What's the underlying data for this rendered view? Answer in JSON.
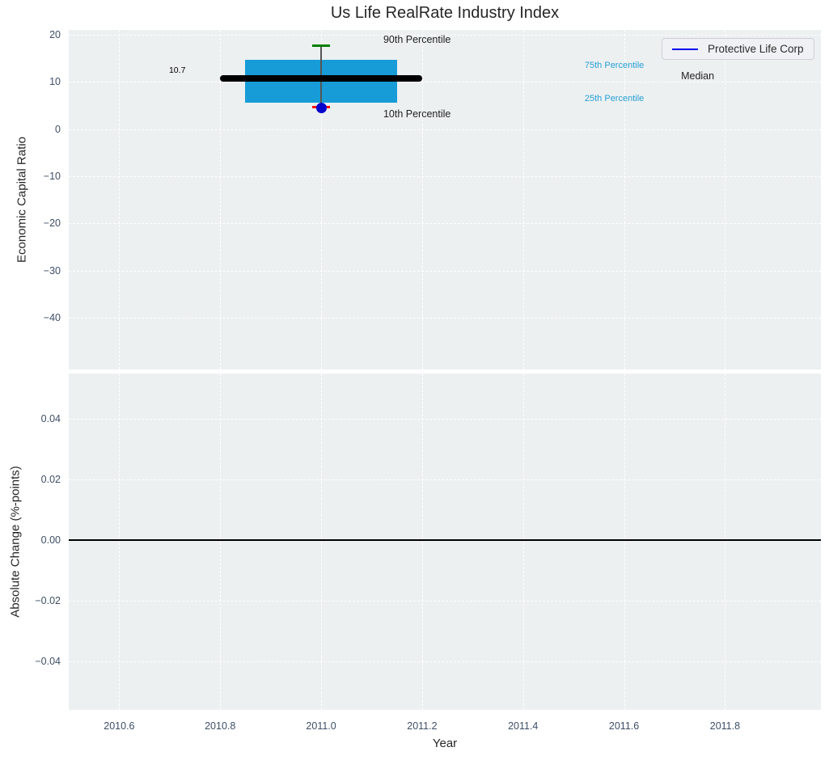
{
  "figure": {
    "title": "Us Life RealRate Industry Index",
    "colors": {
      "plot_background": "#ecf0f1",
      "grid": "#ffffff",
      "tick_label": "#3e4f67",
      "text": "#262626"
    }
  },
  "chart_data": [
    {
      "type": "box",
      "panel": "top",
      "title": "Us Life RealRate Industry Index",
      "xlabel": "Year",
      "ylabel": "Economic Capital Ratio",
      "xlim": [
        2010.5,
        2011.99
      ],
      "ylim": [
        -51,
        21
      ],
      "grid": true,
      "legend_position": "upper right",
      "x_ticks": {
        "values": [
          2010.6,
          2010.8,
          2011.0,
          2011.2,
          2011.4,
          2011.6,
          2011.8
        ],
        "labels": [
          "2010.6",
          "2010.8",
          "2011.0",
          "2011.2",
          "2011.4",
          "2011.6",
          "2011.8"
        ],
        "show_labels": false
      },
      "y_ticks": {
        "values": [
          20,
          10,
          0,
          -10,
          -20,
          -30,
          -40
        ],
        "labels": [
          "20",
          "10",
          "0",
          "−10",
          "−20",
          "−30",
          "−40"
        ]
      },
      "legend": {
        "entries": [
          {
            "label": "Protective Life Corp",
            "color": "#0000ee",
            "marker": "line"
          }
        ]
      },
      "box": {
        "x": 2011.0,
        "box_left": 2010.85,
        "box_right": 2011.15,
        "median_left": 2010.8,
        "median_right": 2011.2,
        "cap_half_width": 0.018,
        "p90": 17.6,
        "p75": 14.7,
        "median": 10.7,
        "p25": 5.5,
        "p10": 4.6,
        "company_point": {
          "label": "Protective Life Corp",
          "x": 2011.0,
          "value": 4.5
        },
        "colors": {
          "box": "#179cd7",
          "median": "#000000",
          "p90_cap": "#008000",
          "p10_cap": "#ff0000",
          "whisker": "#555555",
          "company_point": "#0000cd"
        }
      },
      "annotations": [
        {
          "name": "median-value-label",
          "text": "10.7",
          "x": 2010.715,
          "y": 12.4,
          "ha": "center",
          "color": "#000000",
          "size": 10.5
        },
        {
          "name": "p90-label",
          "text": "90th Percentile",
          "x": 2011.19,
          "y": 18.9,
          "ha": "center",
          "color": "#1f1f1f",
          "size": 12.5
        },
        {
          "name": "p10-label",
          "text": "10th Percentile",
          "x": 2011.19,
          "y": 3.2,
          "ha": "center",
          "color": "#1f1f1f",
          "size": 12.5
        },
        {
          "name": "p75-label",
          "text": "75th Percentile",
          "x": 2011.522,
          "y": 13.5,
          "ha": "left",
          "color": "#27a0d5",
          "size": 11
        },
        {
          "name": "p25-label",
          "text": "25th Percentile",
          "x": 2011.522,
          "y": 6.4,
          "ha": "left",
          "color": "#27a0d5",
          "size": 11
        },
        {
          "name": "median-label",
          "text": "Median",
          "x": 2011.713,
          "y": 11.2,
          "ha": "left",
          "color": "#1f1f1f",
          "size": 12.5
        }
      ]
    },
    {
      "type": "line",
      "panel": "bottom",
      "xlabel": "Year",
      "ylabel": "Absolute Change (%-points)",
      "xlim": [
        2010.5,
        2011.99
      ],
      "ylim": [
        -0.056,
        0.055
      ],
      "grid": true,
      "x_ticks": {
        "values": [
          2010.6,
          2010.8,
          2011.0,
          2011.2,
          2011.4,
          2011.6,
          2011.8
        ],
        "labels": [
          "2010.6",
          "2010.8",
          "2011.0",
          "2011.2",
          "2011.4",
          "2011.6",
          "2011.8"
        ],
        "show_labels": true
      },
      "y_ticks": {
        "values": [
          0.04,
          0.02,
          0,
          -0.02,
          -0.04
        ],
        "labels": [
          "0.04",
          "0.02",
          "0.00",
          "−0.02",
          "−0.04"
        ]
      },
      "zero_line": {
        "value": 0,
        "color": "#000000"
      },
      "series": []
    }
  ]
}
